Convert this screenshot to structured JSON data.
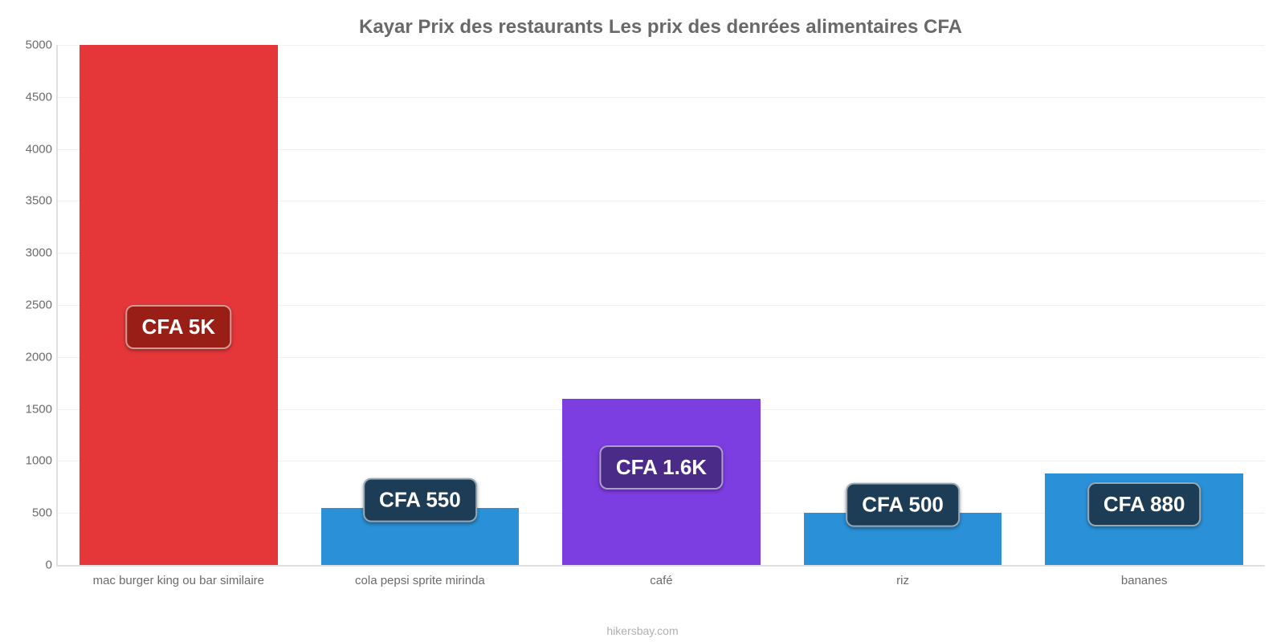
{
  "chart": {
    "type": "bar",
    "title": "Kayar Prix des restaurants Les prix des denrées alimentaires CFA",
    "title_fontsize": 24,
    "title_color": "#696969",
    "credit": "hikersbay.com",
    "credit_color": "#b0b0b0",
    "credit_fontsize": 14,
    "background_color": "#ffffff",
    "grid_color": "#e0e0e0",
    "faint_grid_color": "rgba(200,200,200,0.25)",
    "axis_label_color": "#6b6b6b",
    "axis_label_fontsize": 15,
    "ylim": [
      0,
      5000
    ],
    "ytick_step": 500,
    "yticks": [
      0,
      500,
      1000,
      1500,
      2000,
      2500,
      3000,
      3500,
      4000,
      4500,
      5000
    ],
    "bar_width_pct": 82,
    "bars": [
      {
        "category": "mac burger king ou bar similaire",
        "value": 5000,
        "value_label": "CFA 5K",
        "bar_color": "#e5373a",
        "badge_bg": "#991f16",
        "badge_text_color": "#ffffff",
        "badge_offset_from_bar_top_pct": 50
      },
      {
        "category": "cola pepsi sprite mirinda",
        "value": 550,
        "value_label": "CFA 550",
        "bar_color": "#2a91d8",
        "badge_bg": "#1d3d57",
        "badge_text_color": "#ffffff",
        "badge_offset_from_bar_top_pct": -3
      },
      {
        "category": "café",
        "value": 1600,
        "value_label": "CFA 1.6K",
        "bar_color": "#7c3de1",
        "badge_bg": "#4a2b88",
        "badge_text_color": "#ffffff",
        "badge_offset_from_bar_top_pct": 28
      },
      {
        "category": "riz",
        "value": 500,
        "value_label": "CFA 500",
        "bar_color": "#2a91d8",
        "badge_bg": "#1d3d57",
        "badge_text_color": "#ffffff",
        "badge_offset_from_bar_top_pct": -3
      },
      {
        "category": "bananes",
        "value": 880,
        "value_label": "CFA 880",
        "bar_color": "#2a91d8",
        "badge_bg": "#1d3d57",
        "badge_text_color": "#ffffff",
        "badge_offset_from_bar_top_pct": 10
      }
    ]
  }
}
